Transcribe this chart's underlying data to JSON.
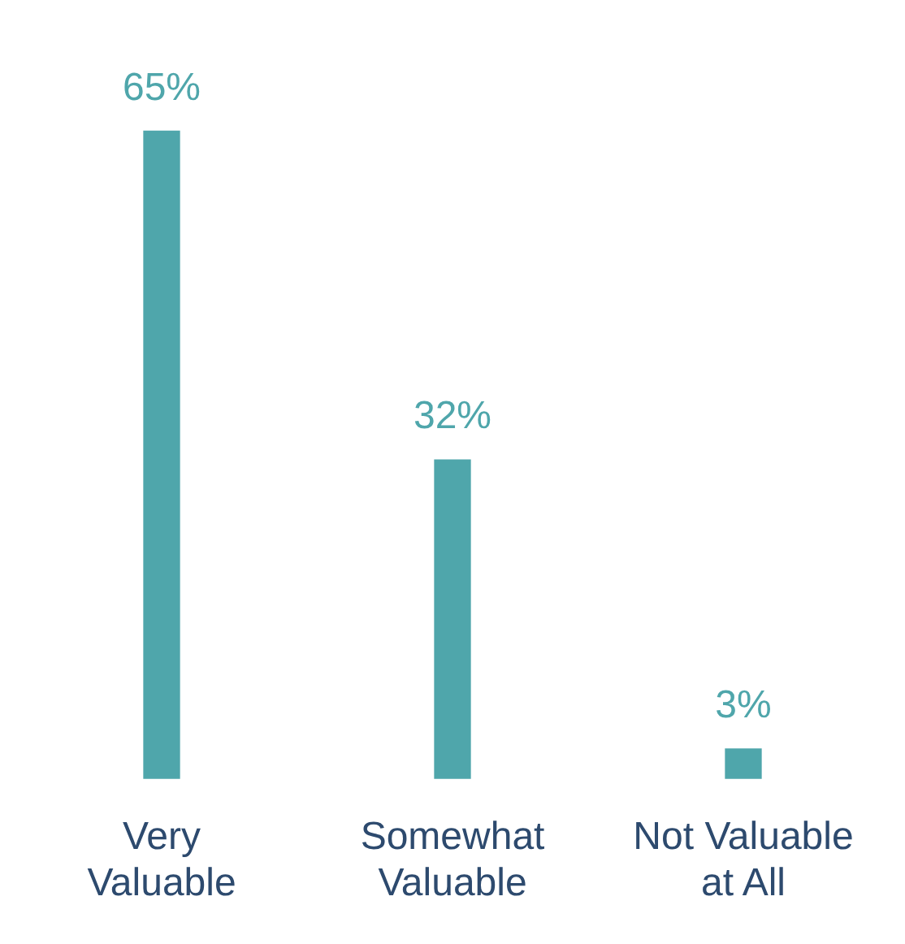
{
  "chart_data": {
    "type": "bar",
    "categories": [
      "Very Valuable",
      "Somewhat Valuable",
      "Not Valuable at All"
    ],
    "values": [
      65,
      32,
      3
    ],
    "color": "#4fa6ab",
    "value_labels": [
      "65%",
      "32%",
      "3%"
    ],
    "grid": false,
    "legend": false,
    "tick_labels": "x"
  }
}
